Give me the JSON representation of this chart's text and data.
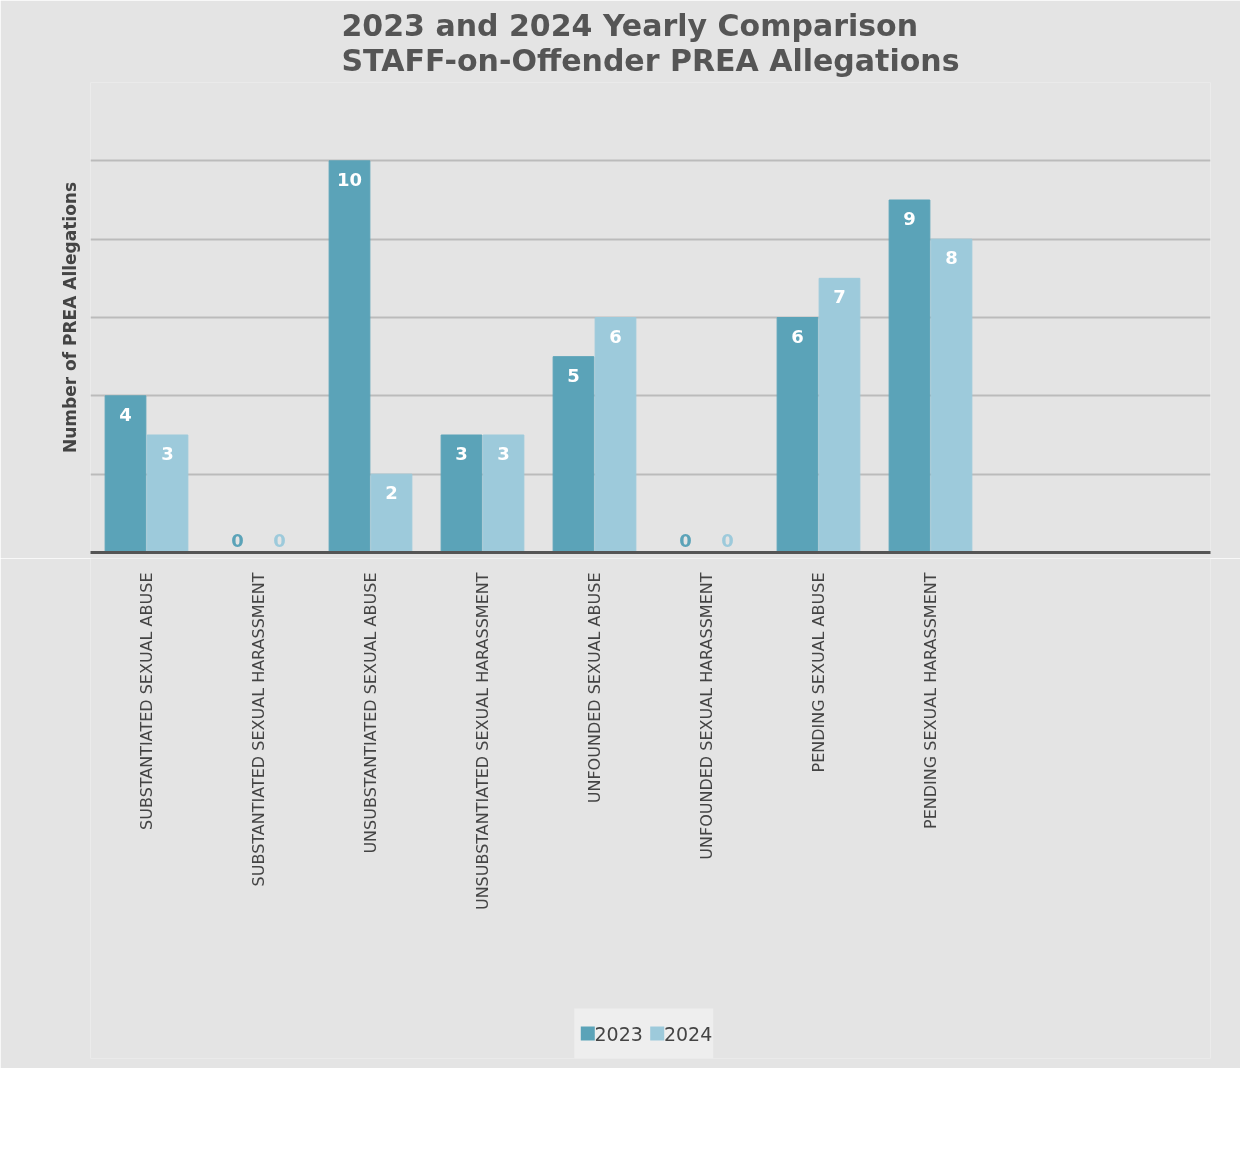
{
  "chart_data": {
    "type": "bar",
    "title": "2023 and 2024 Yearly Comparison\nSTAFF-on-Offender PREA Allegations",
    "ylabel": "Number of PREA Allegations",
    "categories": [
      "SUBSTANTIATED SEXUAL ABUSE",
      "SUBSTANTIATED SEXUAL HARASSMENT",
      "UNSUBSTANTIATED SEXUAL ABUSE",
      "UNSUBSTANTIATED SEXUAL HARASSMENT",
      "UNFOUNDED SEXUAL ABUSE",
      "UNFOUNDED SEXUAL HARASSMENT",
      "PENDING SEXUAL ABUSE",
      "PENDING SEXUAL HARASSMENT",
      null,
      null
    ],
    "series": [
      {
        "name": "2023",
        "color": "#5ba3b8",
        "values": [
          4,
          0,
          10,
          3,
          5,
          0,
          6,
          9,
          null,
          null
        ]
      },
      {
        "name": "2024",
        "color": "#9dcadb",
        "values": [
          3,
          0,
          2,
          3,
          6,
          0,
          7,
          8,
          null,
          null
        ]
      }
    ],
    "ylim": [
      0,
      12
    ],
    "yticks": [
      {
        "value": 0,
        "label": null
      },
      {
        "value": 2,
        "label": null
      },
      {
        "value": 4,
        "label": null
      },
      {
        "value": 6,
        "label": null
      },
      {
        "value": 8,
        "label": null
      },
      {
        "value": 10,
        "label": null
      },
      {
        "value": 12,
        "label": null
      }
    ],
    "tick_labels": "x",
    "grid": "y",
    "data_labels": true,
    "legend": "bottom"
  }
}
